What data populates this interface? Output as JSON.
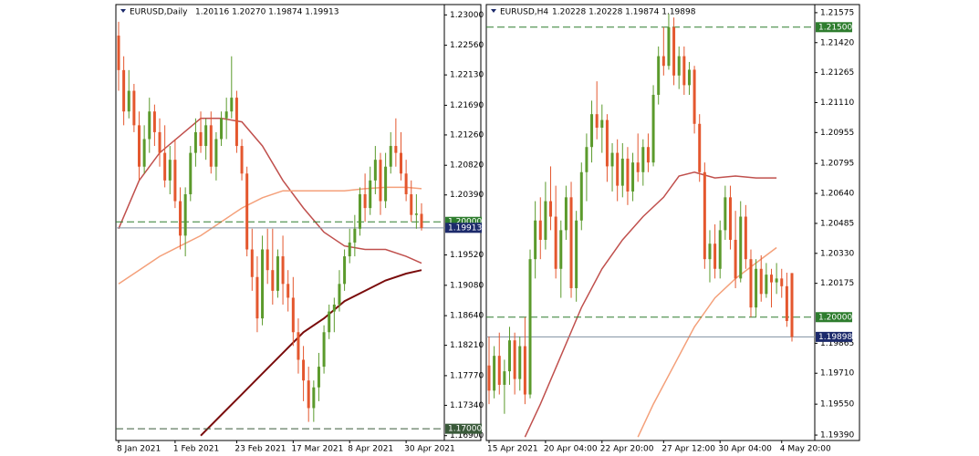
{
  "chart_data": [
    {
      "type": "candlestick",
      "title": "EURUSD,Daily",
      "subtitle": "1.20116 1.20270 1.19874 1.19913",
      "up_color": "#5b9a2c",
      "down_color": "#e4572e",
      "categories": [
        "8 Jan 2021",
        null,
        null,
        null,
        null,
        null,
        null,
        null,
        null,
        null,
        null,
        "1 Feb 2021",
        null,
        null,
        null,
        null,
        null,
        null,
        null,
        null,
        null,
        null,
        null,
        "23 Feb 2021",
        null,
        null,
        null,
        null,
        null,
        null,
        null,
        null,
        null,
        null,
        "17 Mar 2021",
        null,
        null,
        null,
        null,
        null,
        null,
        null,
        null,
        null,
        null,
        "8 Apr 2021",
        null,
        null,
        null,
        null,
        null,
        null,
        null,
        null,
        null,
        null,
        "30 Apr 2021",
        null,
        null,
        null
      ],
      "ohlc": [
        [
          1.227,
          1.229,
          1.219,
          1.222
        ],
        [
          1.222,
          1.224,
          1.214,
          1.216
        ],
        [
          1.216,
          1.222,
          1.215,
          1.219
        ],
        [
          1.219,
          1.22,
          1.213,
          1.214
        ],
        [
          1.214,
          1.216,
          1.206,
          1.208
        ],
        [
          1.208,
          1.214,
          1.207,
          1.212
        ],
        [
          1.212,
          1.218,
          1.21,
          1.216
        ],
        [
          1.216,
          1.217,
          1.211,
          1.213
        ],
        [
          1.213,
          1.215,
          1.208,
          1.21
        ],
        [
          1.21,
          1.214,
          1.205,
          1.206
        ],
        [
          1.206,
          1.211,
          1.204,
          1.209
        ],
        [
          1.209,
          1.212,
          1.202,
          1.203
        ],
        [
          1.203,
          1.205,
          1.196,
          1.198
        ],
        [
          1.198,
          1.205,
          1.195,
          1.204
        ],
        [
          1.204,
          1.211,
          1.203,
          1.21
        ],
        [
          1.21,
          1.215,
          1.208,
          1.213
        ],
        [
          1.213,
          1.216,
          1.21,
          1.211
        ],
        [
          1.211,
          1.215,
          1.209,
          1.214
        ],
        [
          1.214,
          1.216,
          1.207,
          1.208
        ],
        [
          1.208,
          1.213,
          1.206,
          1.212
        ],
        [
          1.212,
          1.216,
          1.211,
          1.215
        ],
        [
          1.215,
          1.218,
          1.212,
          1.216
        ],
        [
          1.216,
          1.224,
          1.215,
          1.218
        ],
        [
          1.218,
          1.219,
          1.21,
          1.211
        ],
        [
          1.211,
          1.212,
          1.206,
          1.207
        ],
        [
          1.207,
          1.208,
          1.195,
          1.196
        ],
        [
          1.196,
          1.199,
          1.19,
          1.192
        ],
        [
          1.192,
          1.195,
          1.184,
          1.186
        ],
        [
          1.186,
          1.198,
          1.185,
          1.196
        ],
        [
          1.196,
          1.199,
          1.191,
          1.193
        ],
        [
          1.193,
          1.199,
          1.188,
          1.19
        ],
        [
          1.19,
          1.196,
          1.189,
          1.195
        ],
        [
          1.195,
          1.198,
          1.188,
          1.191
        ],
        [
          1.191,
          1.193,
          1.187,
          1.189
        ],
        [
          1.189,
          1.192,
          1.182,
          1.184
        ],
        [
          1.184,
          1.186,
          1.178,
          1.18
        ],
        [
          1.18,
          1.182,
          1.174,
          1.177
        ],
        [
          1.177,
          1.179,
          1.171,
          1.173
        ],
        [
          1.173,
          1.177,
          1.171,
          1.176
        ],
        [
          1.176,
          1.181,
          1.174,
          1.179
        ],
        [
          1.179,
          1.185,
          1.178,
          1.184
        ],
        [
          1.184,
          1.188,
          1.183,
          1.187
        ],
        [
          1.187,
          1.189,
          1.184,
          1.188
        ],
        [
          1.188,
          1.193,
          1.187,
          1.191
        ],
        [
          1.191,
          1.196,
          1.19,
          1.195
        ],
        [
          1.195,
          1.199,
          1.194,
          1.197
        ],
        [
          1.197,
          1.201,
          1.195,
          1.199
        ],
        [
          1.199,
          1.205,
          1.198,
          1.204
        ],
        [
          1.204,
          1.207,
          1.2,
          1.202
        ],
        [
          1.202,
          1.208,
          1.201,
          1.206
        ],
        [
          1.206,
          1.211,
          1.204,
          1.209
        ],
        [
          1.209,
          1.21,
          1.201,
          1.203
        ],
        [
          1.203,
          1.21,
          1.202,
          1.208
        ],
        [
          1.208,
          1.213,
          1.207,
          1.211
        ],
        [
          1.211,
          1.215,
          1.208,
          1.21
        ],
        [
          1.21,
          1.213,
          1.206,
          1.207
        ],
        [
          1.207,
          1.209,
          1.203,
          1.204
        ],
        [
          1.204,
          1.206,
          1.2,
          1.201
        ],
        [
          1.201,
          1.204,
          1.199,
          1.2012
        ],
        [
          1.20116,
          1.2027,
          1.19874,
          1.19913
        ]
      ],
      "lines": [
        {
          "color": "#c0504d",
          "x": [
            0,
            4,
            8,
            12,
            16,
            20,
            24,
            28,
            32,
            36,
            40,
            44,
            48,
            52,
            56,
            59
          ],
          "values": [
            1.199,
            1.206,
            1.21,
            1.2125,
            1.215,
            1.215,
            1.2145,
            1.211,
            1.206,
            1.202,
            1.1985,
            1.1965,
            1.196,
            1.196,
            1.195,
            1.194
          ]
        },
        {
          "color": "#f4a07a",
          "x": [
            0,
            4,
            8,
            12,
            16,
            20,
            24,
            28,
            32,
            36,
            40,
            44,
            48,
            52,
            56,
            59
          ],
          "values": [
            1.191,
            1.193,
            1.195,
            1.1965,
            1.198,
            1.2,
            1.202,
            1.2035,
            1.2045,
            1.2045,
            1.2045,
            1.2045,
            1.2048,
            1.205,
            1.205,
            1.2048
          ]
        },
        {
          "color": "#7a0c0c",
          "x": [
            16,
            20,
            24,
            28,
            32,
            36,
            40,
            44,
            48,
            52,
            56,
            59
          ],
          "values": [
            1.169,
            1.172,
            1.175,
            1.178,
            1.181,
            1.184,
            1.186,
            1.1885,
            1.19,
            1.1915,
            1.1925,
            1.193
          ]
        }
      ],
      "hlines": [
        {
          "value": 1.2,
          "label": "1.20000",
          "color": "#2e7d2e",
          "style": "dashed"
        },
        {
          "value": 1.19913,
          "label": "1.19913",
          "color": "#1c2a6b",
          "style": "solid"
        },
        {
          "value": 1.17,
          "label": "1.17000",
          "color": "#3a5a3a",
          "style": "dashed"
        }
      ],
      "ylim": [
        1.1683,
        1.2315
      ],
      "yticks": [
        {
          "value": 1.23,
          "label": "1.23000"
        },
        {
          "value": 1.2256,
          "label": "1.22560"
        },
        {
          "value": 1.2213,
          "label": "1.22130"
        },
        {
          "value": 1.2169,
          "label": "1.21690"
        },
        {
          "value": 1.2126,
          "label": "1.21260"
        },
        {
          "value": 1.2082,
          "label": "1.20820"
        },
        {
          "value": 1.2039,
          "label": "1.20390"
        },
        {
          "value": 1.1952,
          "label": "1.19520"
        },
        {
          "value": 1.1908,
          "label": "1.19080"
        },
        {
          "value": 1.1864,
          "label": "1.18640"
        },
        {
          "value": 1.1821,
          "label": "1.18210"
        },
        {
          "value": 1.1777,
          "label": "1.17770"
        },
        {
          "value": 1.1734,
          "label": "1.17340"
        },
        {
          "value": 1.169,
          "label": "1.16900"
        }
      ]
    },
    {
      "type": "candlestick",
      "title": "EURUSD,H4",
      "subtitle": "1.20228 1.20228 1.19874 1.19898",
      "up_color": "#5b9a2c",
      "down_color": "#e4572e",
      "categories": [
        "15 Apr 2021",
        null,
        null,
        null,
        null,
        null,
        null,
        null,
        null,
        null,
        null,
        "20 Apr 04:00",
        null,
        null,
        null,
        null,
        null,
        null,
        null,
        null,
        null,
        null,
        "22 Apr 20:00",
        null,
        null,
        null,
        null,
        null,
        null,
        null,
        null,
        null,
        null,
        null,
        "27 Apr 12:00",
        null,
        null,
        null,
        null,
        null,
        null,
        null,
        null,
        null,
        null,
        "30 Apr 04:00",
        null,
        null,
        null,
        null,
        null,
        null,
        null,
        null,
        null,
        null,
        null,
        "4 May 20:00",
        null,
        null
      ],
      "ohlc": [
        [
          1.1975,
          1.199,
          1.1955,
          1.1962
        ],
        [
          1.1962,
          1.1985,
          1.1958,
          1.198
        ],
        [
          1.198,
          1.1992,
          1.196,
          1.1965
        ],
        [
          1.1965,
          1.1978,
          1.195,
          1.1972
        ],
        [
          1.1972,
          1.1995,
          1.1965,
          1.1988
        ],
        [
          1.1988,
          1.1992,
          1.196,
          1.1968
        ],
        [
          1.1968,
          1.199,
          1.1962,
          1.1985
        ],
        [
          1.1985,
          1.2,
          1.1955,
          1.196
        ],
        [
          1.196,
          1.2035,
          1.1958,
          1.203
        ],
        [
          1.203,
          1.206,
          1.202,
          1.205
        ],
        [
          1.205,
          1.2062,
          1.203,
          1.204
        ],
        [
          1.204,
          1.207,
          1.2035,
          1.206
        ],
        [
          1.206,
          1.2078,
          1.2045,
          1.2052
        ],
        [
          1.2052,
          1.2068,
          1.202,
          1.2025
        ],
        [
          1.2025,
          1.205,
          1.201,
          1.2045
        ],
        [
          1.2045,
          1.2068,
          1.204,
          1.2062
        ],
        [
          1.2062,
          1.207,
          1.201,
          1.2015
        ],
        [
          1.2015,
          1.2055,
          1.2008,
          1.205
        ],
        [
          1.205,
          1.208,
          1.2045,
          1.2075
        ],
        [
          1.2075,
          1.2095,
          1.206,
          1.2088
        ],
        [
          1.2088,
          1.2112,
          1.208,
          1.2105
        ],
        [
          1.2105,
          1.2122,
          1.2092,
          1.2098
        ],
        [
          1.2098,
          1.211,
          1.2085,
          1.2102
        ],
        [
          1.2102,
          1.2105,
          1.207,
          1.2078
        ],
        [
          1.2078,
          1.209,
          1.2065,
          1.2085
        ],
        [
          1.2085,
          1.2092,
          1.206,
          1.2068
        ],
        [
          1.2068,
          1.209,
          1.2062,
          1.2082
        ],
        [
          1.2082,
          1.2088,
          1.2058,
          1.2065
        ],
        [
          1.2065,
          1.2085,
          1.206,
          1.208
        ],
        [
          1.208,
          1.2095,
          1.207,
          1.2075
        ],
        [
          1.2075,
          1.2092,
          1.2068,
          1.2088
        ],
        [
          1.2088,
          1.2095,
          1.2075,
          1.208
        ],
        [
          1.208,
          1.212,
          1.2078,
          1.2115
        ],
        [
          1.2115,
          1.214,
          1.211,
          1.2135
        ],
        [
          1.2135,
          1.215,
          1.2125,
          1.213
        ],
        [
          1.213,
          1.2157,
          1.2128,
          1.215
        ],
        [
          1.215,
          1.2155,
          1.212,
          1.2125
        ],
        [
          1.2125,
          1.214,
          1.2118,
          1.2135
        ],
        [
          1.2135,
          1.214,
          1.2115,
          1.212
        ],
        [
          1.212,
          1.2132,
          1.2115,
          1.2128
        ],
        [
          1.2128,
          1.213,
          1.2095,
          1.21
        ],
        [
          1.21,
          1.2105,
          1.207,
          1.2075
        ],
        [
          1.2075,
          1.208,
          1.2025,
          1.203
        ],
        [
          1.203,
          1.2045,
          1.2018,
          1.2038
        ],
        [
          1.2038,
          1.2048,
          1.202,
          1.2025
        ],
        [
          1.2025,
          1.205,
          1.202,
          1.2045
        ],
        [
          1.2045,
          1.2068,
          1.204,
          1.2062
        ],
        [
          1.2062,
          1.2068,
          1.2035,
          1.204
        ],
        [
          1.204,
          1.2055,
          1.2015,
          1.202
        ],
        [
          1.202,
          1.206,
          1.2018,
          1.2052
        ],
        [
          1.2052,
          1.2058,
          1.2025,
          1.203
        ],
        [
          1.203,
          1.2035,
          1.2,
          1.2005
        ],
        [
          1.2005,
          1.203,
          1.2,
          1.2025
        ],
        [
          1.2025,
          1.2032,
          1.2008,
          1.2012
        ],
        [
          1.2012,
          1.2028,
          1.201,
          1.2022
        ],
        [
          1.2022,
          1.2025,
          1.2005,
          1.2018
        ],
        [
          1.2018,
          1.2028,
          1.2012,
          1.202
        ],
        [
          1.202,
          1.2025,
          1.201,
          1.2016
        ],
        [
          1.2016,
          1.2023,
          1.1995,
          1.1998
        ],
        [
          1.20228,
          1.20228,
          1.19874,
          1.19898
        ]
      ],
      "lines": [
        {
          "color": "#c0504d",
          "x": [
            7,
            10,
            14,
            18,
            22,
            26,
            30,
            34,
            37,
            40,
            44,
            48,
            52,
            56
          ],
          "values": [
            1.1938,
            1.1955,
            1.198,
            1.2005,
            1.2025,
            1.204,
            1.2052,
            1.2062,
            1.2073,
            1.2075,
            1.2072,
            1.2073,
            1.2072,
            1.2072
          ]
        },
        {
          "color": "#f4a07a",
          "x": [
            29,
            32,
            36,
            40,
            44,
            48,
            52,
            56
          ],
          "values": [
            1.1938,
            1.1955,
            1.1975,
            1.1995,
            1.201,
            1.202,
            1.2028,
            1.2036
          ]
        }
      ],
      "hlines": [
        {
          "value": 1.215,
          "label": "1.21500",
          "color": "#2e7d2e",
          "style": "dashed"
        },
        {
          "value": 1.2,
          "label": "1.20000",
          "color": "#2e7d2e",
          "style": "dashed"
        },
        {
          "value": 1.19898,
          "label": "1.19898",
          "color": "#1c2a6b",
          "style": "solid"
        }
      ],
      "ylim": [
        1.19362,
        1.21617
      ],
      "yticks": [
        {
          "value": 1.21575,
          "label": "1.21575"
        },
        {
          "value": 1.2142,
          "label": "1.21420"
        },
        {
          "value": 1.21265,
          "label": "1.21265"
        },
        {
          "value": 1.2111,
          "label": "1.21110"
        },
        {
          "value": 1.20955,
          "label": "1.20955"
        },
        {
          "value": 1.20795,
          "label": "1.20795"
        },
        {
          "value": 1.2064,
          "label": "1.20640"
        },
        {
          "value": 1.20485,
          "label": "1.20485"
        },
        {
          "value": 1.2033,
          "label": "1.20330"
        },
        {
          "value": 1.20175,
          "label": "1.20175"
        },
        {
          "value": 1.19865,
          "label": "1.19865"
        },
        {
          "value": 1.1971,
          "label": "1.19710"
        },
        {
          "value": 1.1955,
          "label": "1.19550"
        },
        {
          "value": 1.1939,
          "label": "1.19390"
        }
      ]
    }
  ]
}
